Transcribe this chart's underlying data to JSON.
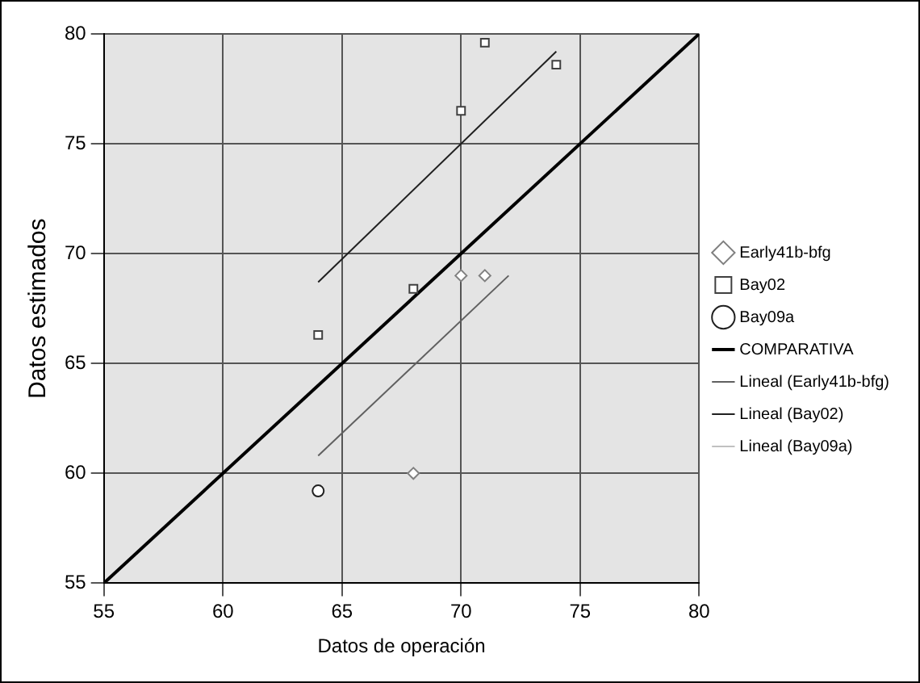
{
  "chart_data": {
    "type": "scatter",
    "xlabel": "Datos de operación",
    "ylabel": "Datos estimados",
    "xlim": [
      55,
      80
    ],
    "ylim": [
      55,
      80
    ],
    "xticks": [
      55,
      60,
      65,
      70,
      75,
      80
    ],
    "yticks": [
      55,
      60,
      65,
      70,
      75,
      80
    ],
    "grid": true,
    "legend": "right",
    "series": [
      {
        "name": "Early41b-bfg",
        "marker": "diamond",
        "color": "#808080",
        "x": [
          68,
          70,
          71
        ],
        "values": [
          60,
          69,
          69
        ]
      },
      {
        "name": "Bay02",
        "marker": "square",
        "color": "#404040",
        "x": [
          64,
          68,
          70,
          71,
          74
        ],
        "values": [
          66.3,
          68.4,
          76.5,
          79.6,
          78.6
        ]
      },
      {
        "name": "Bay09a",
        "marker": "circle",
        "color": "#202020",
        "x": [
          64
        ],
        "values": [
          59.2
        ]
      },
      {
        "name": "COMPARATIVA",
        "type": "line",
        "marker": "none",
        "color": "#000000",
        "x": [
          55,
          80
        ],
        "values": [
          55,
          80
        ]
      },
      {
        "name": "Lineal (Early41b-bfg)",
        "type": "line",
        "marker": "none",
        "color": "#606060",
        "x": [
          64,
          72
        ],
        "values": [
          60.8,
          69
        ]
      },
      {
        "name": "Lineal (Bay02)",
        "type": "line",
        "marker": "none",
        "color": "#202020",
        "x": [
          64,
          74
        ],
        "values": [
          68.7,
          79.2
        ]
      },
      {
        "name": "Lineal (Bay09a)",
        "type": "line",
        "marker": "none",
        "color": "#c0c0c0"
      }
    ]
  }
}
